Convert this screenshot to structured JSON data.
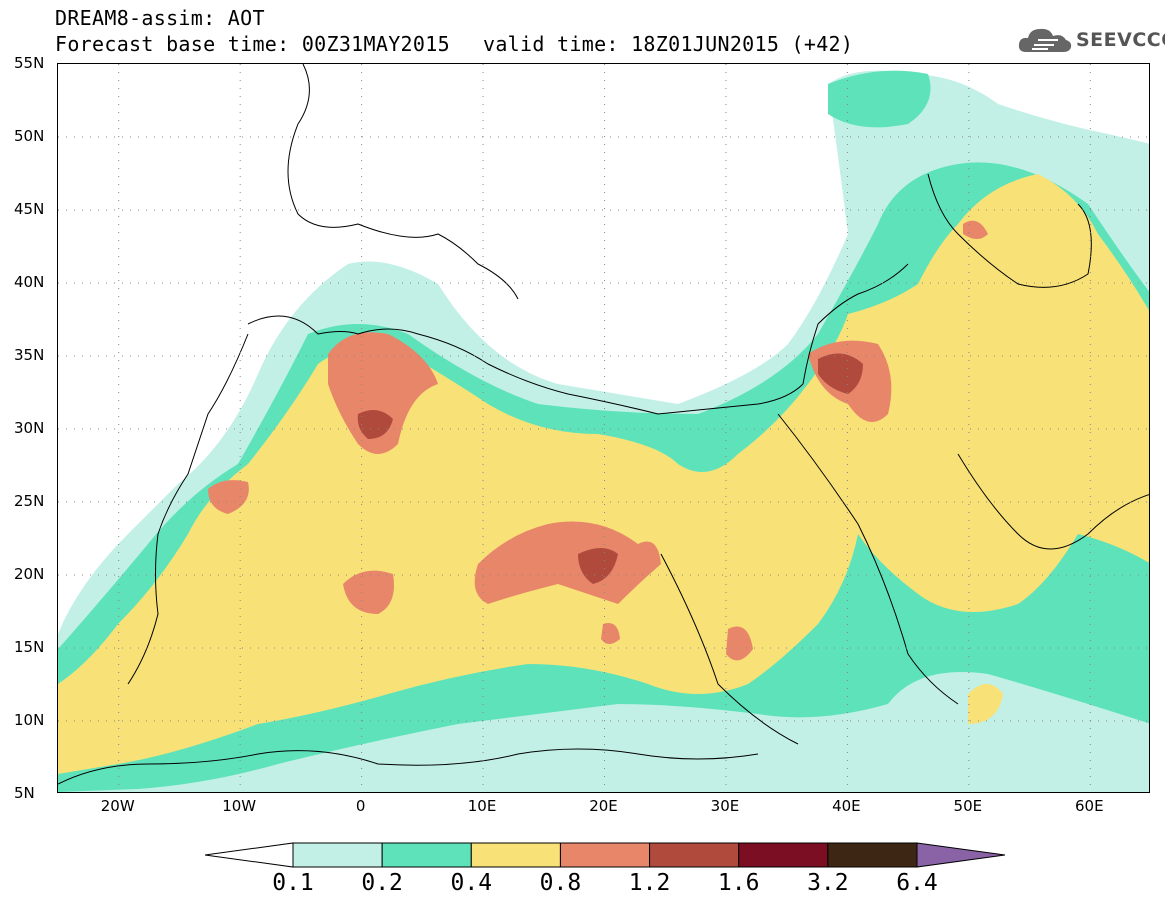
{
  "header": {
    "line1": "DREAM8-assim: AOT",
    "line2": "Forecast base time: 00Z31MAY2015",
    "valid": "valid time: 18Z01JUN2015 (+42)",
    "logo_text": "SEEVCCC",
    "logo_icon": "cloud-icon"
  },
  "map": {
    "lat_labels": [
      "55N",
      "50N",
      "45N",
      "40N",
      "35N",
      "30N",
      "25N",
      "20N",
      "15N",
      "10N",
      "5N"
    ],
    "lon_labels": [
      "20W",
      "10W",
      "0",
      "10E",
      "20E",
      "30E",
      "40E",
      "50E",
      "60E"
    ],
    "lon_range": [
      -25,
      65
    ],
    "lat_range": [
      5,
      55
    ]
  },
  "colorbar": {
    "levels": [
      "0.1",
      "0.2",
      "0.4",
      "0.8",
      "1.2",
      "1.6",
      "3.2",
      "6.4"
    ],
    "colors": [
      "#ffffff",
      "#c2f0e6",
      "#5ee2ba",
      "#f8e277",
      "#e8866a",
      "#b04a3c",
      "#7c0e24",
      "#3e2614",
      "#8a63a6"
    ]
  },
  "colors": {
    "c01": "#c2f0e6",
    "c02": "#5ee2ba",
    "c04": "#f8e277",
    "c08": "#e8866a",
    "c12": "#b04a3c",
    "grid": "#888888"
  }
}
